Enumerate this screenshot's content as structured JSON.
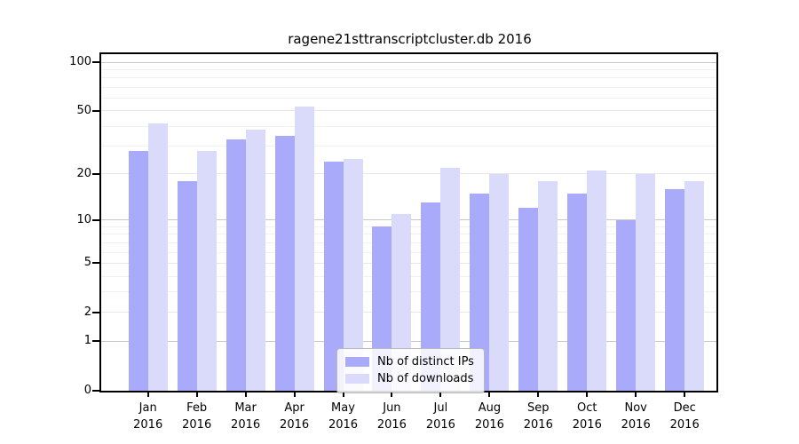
{
  "title": "ragene21sttranscriptcluster.db 2016",
  "chart_data": {
    "type": "bar",
    "title": "ragene21sttranscriptcluster.db 2016",
    "categories": [
      "Jan",
      "Feb",
      "Mar",
      "Apr",
      "May",
      "Jun",
      "Jul",
      "Aug",
      "Sep",
      "Oct",
      "Nov",
      "Dec"
    ],
    "year_label": "2016",
    "series": [
      {
        "name": "Nb of distinct IPs",
        "color": "#aaaafa",
        "values": [
          28,
          18,
          33,
          35,
          24,
          9,
          13,
          15,
          12,
          15,
          10,
          16
        ]
      },
      {
        "name": "Nb of downloads",
        "color": "#dadafa",
        "values": [
          42,
          28,
          38,
          53,
          25,
          11,
          22,
          20,
          18,
          21,
          20,
          18
        ]
      }
    ],
    "xlabel": "",
    "ylabel": "",
    "yscale": "log1p",
    "ylim": [
      0,
      112
    ],
    "y_ticks": [
      0,
      1,
      2,
      5,
      10,
      20,
      50,
      100
    ],
    "y_decade_ticks": [
      1,
      10,
      100
    ],
    "y_minor_gridlines": [
      3,
      4,
      6,
      7,
      8,
      9,
      30,
      40,
      60,
      70,
      80,
      90
    ],
    "grid": true,
    "legend_position": "lower center",
    "axis_color": "#000000",
    "major_grid_color": "#c8c8c8",
    "minor_grid_color": "#f1f1f1"
  }
}
